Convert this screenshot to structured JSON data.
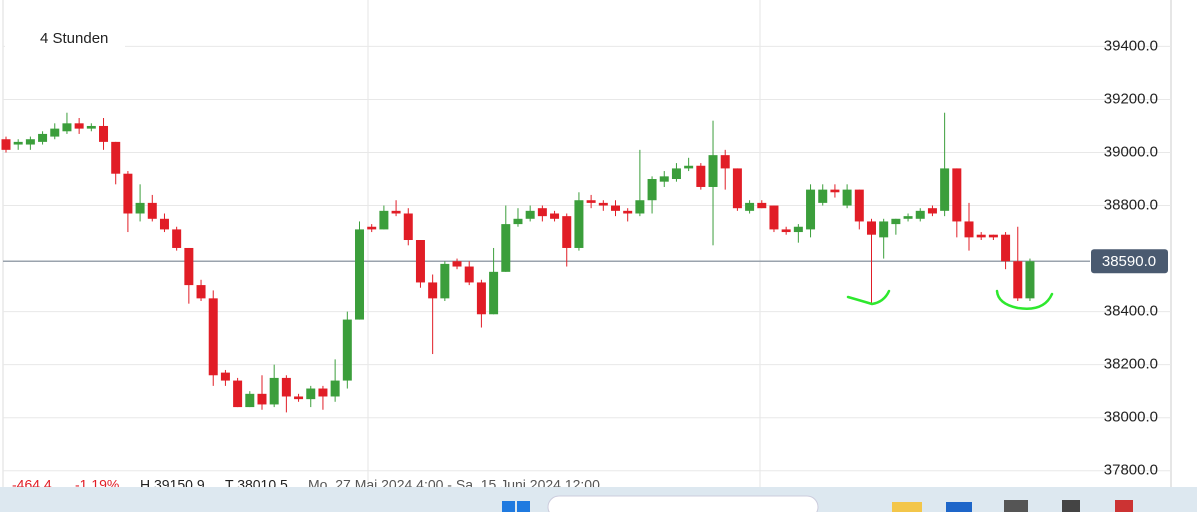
{
  "chart_data": {
    "type": "candlestick",
    "title": "4 Stunden",
    "up_color": "#3b9e3b",
    "down_color": "#e11d26",
    "ylim": [
      37750,
      39575
    ],
    "yticks": [
      {
        "value": 37800,
        "label": "37800.0"
      },
      {
        "value": 38000,
        "label": "38000.0"
      },
      {
        "value": 38200,
        "label": "38200.0"
      },
      {
        "value": 38400,
        "label": "38400.0"
      },
      {
        "value": 38800,
        "label": "38800.0"
      },
      {
        "value": 39000,
        "label": "39000.0"
      },
      {
        "value": 39200,
        "label": "39200.0"
      },
      {
        "value": 39400,
        "label": "39400.0"
      }
    ],
    "grid": true,
    "current_price": {
      "value": 38590,
      "label": "38590.0"
    },
    "open": [
      39050,
      39030,
      39030,
      39040,
      39060,
      39080,
      39110,
      39090,
      39100,
      39040,
      38920,
      38770,
      38810,
      38750,
      38710,
      38640,
      38500,
      38450,
      38170,
      38140,
      38040,
      38090,
      38050,
      38150,
      38080,
      38070,
      38110,
      38080,
      38140,
      38370,
      38720,
      38710,
      38780,
      38770,
      38670,
      38510,
      38450,
      38590,
      38570,
      38510,
      38390,
      38550,
      38730,
      38750,
      38790,
      38770,
      38760,
      38640,
      38820,
      38810,
      38800,
      38780,
      38770,
      38820,
      38890,
      38900,
      38940,
      38950,
      38870,
      38990,
      38940,
      38780,
      38810,
      38800,
      38710,
      38700,
      38710,
      38810,
      38860,
      38800,
      38860,
      38740,
      38680,
      38730,
      38750,
      38750,
      38790,
      38780,
      38940,
      38740,
      38690,
      38690,
      38690,
      38590,
      38450
    ],
    "high": [
      39060,
      39050,
      39060,
      39080,
      39110,
      39150,
      39130,
      39110,
      39130,
      39040,
      38930,
      38880,
      38840,
      38770,
      38720,
      38640,
      38520,
      38480,
      38180,
      38150,
      38100,
      38160,
      38200,
      38160,
      38090,
      38120,
      38120,
      38220,
      38400,
      38740,
      38730,
      38800,
      38820,
      38790,
      38670,
      38540,
      38590,
      38600,
      38590,
      38520,
      38640,
      38800,
      38790,
      38800,
      38800,
      38780,
      38770,
      38850,
      38840,
      38820,
      38820,
      38790,
      39010,
      38910,
      38930,
      38960,
      38980,
      38960,
      39120,
      39010,
      38940,
      38820,
      38820,
      38800,
      38720,
      38730,
      38880,
      38880,
      38880,
      38880,
      38860,
      38750,
      38750,
      38750,
      38770,
      38790,
      38800,
      39150,
      38940,
      38810,
      38700,
      38690,
      38700,
      38720,
      38600
    ],
    "low": [
      39000,
      39010,
      39010,
      39030,
      39050,
      39070,
      39070,
      39080,
      39010,
      38880,
      38700,
      38740,
      38740,
      38700,
      38630,
      38430,
      38440,
      38120,
      38120,
      38040,
      38040,
      38030,
      38040,
      38020,
      38060,
      38040,
      38030,
      38060,
      38110,
      38370,
      38700,
      38710,
      38760,
      38650,
      38490,
      38240,
      38440,
      38560,
      38500,
      38340,
      38390,
      38550,
      38720,
      38740,
      38740,
      38740,
      38570,
      38630,
      38790,
      38780,
      38760,
      38740,
      38760,
      38770,
      38870,
      38890,
      38930,
      38860,
      38650,
      38860,
      38780,
      38770,
      38790,
      38700,
      38690,
      38660,
      38680,
      38800,
      38830,
      38790,
      38710,
      38430,
      38600,
      38690,
      38740,
      38740,
      38760,
      38760,
      38680,
      38630,
      38670,
      38670,
      38560,
      38440,
      38440
    ],
    "close": [
      39010,
      39040,
      39050,
      39070,
      39090,
      39110,
      39090,
      39100,
      39040,
      38920,
      38770,
      38810,
      38750,
      38710,
      38640,
      38500,
      38450,
      38160,
      38140,
      38040,
      38090,
      38050,
      38150,
      38080,
      38070,
      38110,
      38080,
      38140,
      38370,
      38710,
      38710,
      38780,
      38770,
      38670,
      38510,
      38450,
      38580,
      38570,
      38510,
      38390,
      38550,
      38730,
      38750,
      38780,
      38760,
      38750,
      38640,
      38820,
      38810,
      38800,
      38780,
      38770,
      38820,
      38900,
      38910,
      38940,
      38950,
      38870,
      38990,
      38940,
      38790,
      38810,
      38790,
      38710,
      38700,
      38720,
      38860,
      38860,
      38850,
      38860,
      38740,
      38690,
      38740,
      38750,
      38760,
      38780,
      38770,
      38940,
      38740,
      38680,
      38680,
      38680,
      38590,
      38450,
      38590
    ]
  },
  "footer": {
    "change": "-464.4",
    "change_pct": "-1.19%",
    "high": "H 39150.9",
    "low": "T 38010.5",
    "range": "Mo. 27 Mai 2024 4:00 - Sa. 15 Juni 2024 12:00"
  }
}
